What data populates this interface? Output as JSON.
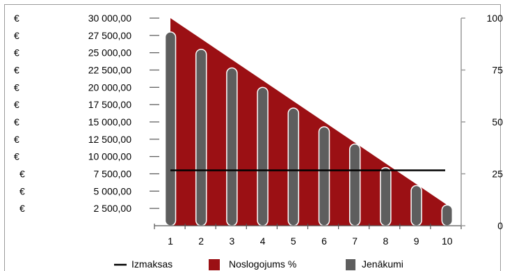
{
  "chart_data": {
    "type": "bar",
    "categories": [
      "1",
      "2",
      "3",
      "4",
      "5",
      "6",
      "7",
      "8",
      "9",
      "10"
    ],
    "series": [
      {
        "name": "Jenākumi",
        "type": "bar",
        "values": [
          28000,
          25500,
          22800,
          20000,
          17000,
          14300,
          11800,
          8400,
          5800,
          3000
        ]
      },
      {
        "name": "Noslogojums %",
        "type": "area",
        "values": [
          100,
          90,
          80,
          70,
          60,
          50,
          40,
          30,
          20,
          10
        ]
      },
      {
        "name": "Izmaksas",
        "type": "line",
        "values": [
          8000,
          8000,
          8000,
          8000,
          8000,
          8000,
          8000,
          8000,
          8000,
          8000
        ]
      }
    ],
    "y_left": {
      "ylim": [
        0,
        30000
      ],
      "tick_values": [
        2500,
        5000,
        7500,
        10000,
        12500,
        15000,
        17500,
        20000,
        22500,
        25000,
        27500,
        30000
      ],
      "tick_labels": [
        "2 500,00",
        "5 000,00",
        "7 500,00",
        "10 000,00",
        "12 500,00",
        "15 000,00",
        "17 500,00",
        "20 000,00",
        "22 500,00",
        "25 000,00",
        "27 500,00",
        "30 000,00"
      ],
      "currency_symbol": "€"
    },
    "y_right": {
      "ylim": [
        0,
        100
      ],
      "tick_labels": [
        "0",
        "25",
        "50",
        "75",
        "100"
      ]
    },
    "grid": false,
    "legend_position": "bottom",
    "colors": {
      "area": "#9b1014",
      "bars": "#5e5e5e",
      "bar_outline": "#ffffff",
      "line": "#000000",
      "frame": "#9a9a9a",
      "axis": "#555555"
    }
  }
}
